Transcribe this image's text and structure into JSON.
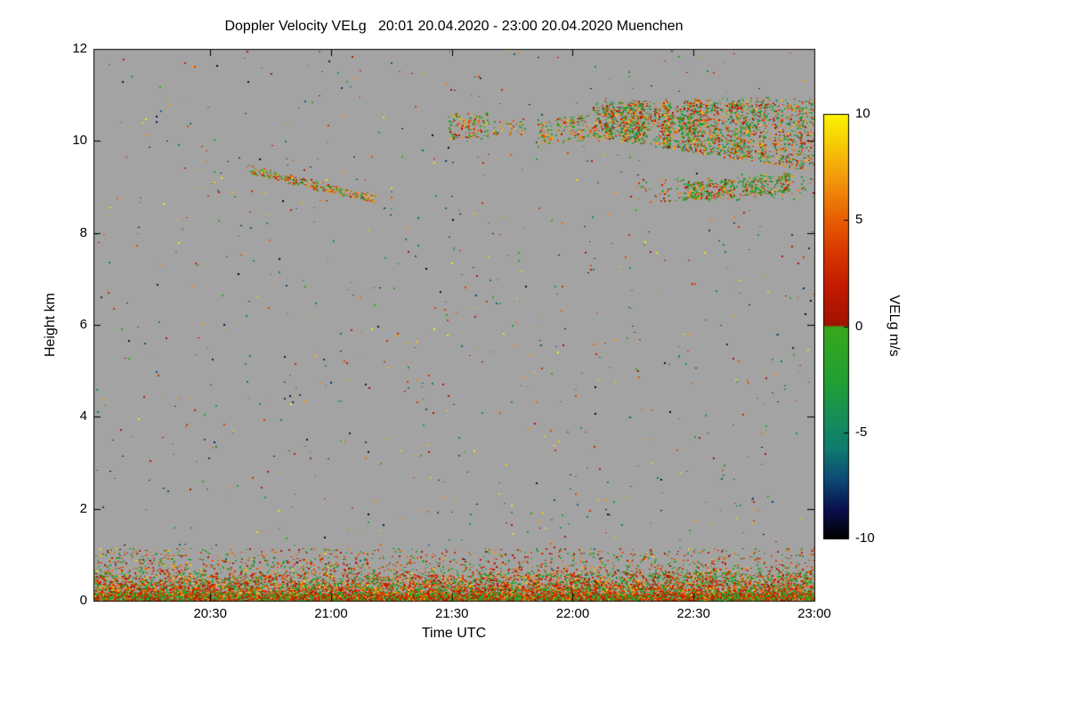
{
  "chart_data": {
    "type": "heatmap",
    "title": "Doppler Velocity VELg   20:01 20.04.2020 - 23:00 20.04.2020 Muenchen",
    "xlabel": "Time UTC",
    "ylabel": "Height km",
    "colorbar_label": "VELg m/s",
    "time_start": "20:01 20.04.2020",
    "time_end": "23:00 20.04.2020",
    "location": "Muenchen",
    "x_range_minutes": [
      1201,
      1380
    ],
    "x_ticks": [
      {
        "minutes": 1230,
        "label": "20:30"
      },
      {
        "minutes": 1260,
        "label": "21:00"
      },
      {
        "minutes": 1290,
        "label": "21:30"
      },
      {
        "minutes": 1320,
        "label": "22:00"
      },
      {
        "minutes": 1350,
        "label": "22:30"
      },
      {
        "minutes": 1380,
        "label": "23:00"
      }
    ],
    "y_range": [
      0,
      12
    ],
    "y_ticks": [
      {
        "value": 0,
        "label": "0"
      },
      {
        "value": 2,
        "label": "2"
      },
      {
        "value": 4,
        "label": "4"
      },
      {
        "value": 6,
        "label": "6"
      },
      {
        "value": 8,
        "label": "8"
      },
      {
        "value": 10,
        "label": "10"
      },
      {
        "value": 12,
        "label": "12"
      }
    ],
    "background_color": "#a3a3a3",
    "colorbar": {
      "range": [
        -10,
        10
      ],
      "ticks": [
        {
          "value": 10,
          "label": "10"
        },
        {
          "value": 5,
          "label": "5"
        },
        {
          "value": 0,
          "label": "0"
        },
        {
          "value": -5,
          "label": "-5"
        },
        {
          "value": -10,
          "label": "-10"
        }
      ],
      "stops": [
        {
          "v": -10,
          "c": "#000000"
        },
        {
          "v": -8.6,
          "c": "#0a1150"
        },
        {
          "v": -7.2,
          "c": "#0d4a74"
        },
        {
          "v": -5.8,
          "c": "#107a70"
        },
        {
          "v": -4.2,
          "c": "#169055"
        },
        {
          "v": -2.6,
          "c": "#22a033"
        },
        {
          "v": -0.05,
          "c": "#38a81c"
        },
        {
          "v": 0.05,
          "c": "#a01300"
        },
        {
          "v": 1.8,
          "c": "#c21a00"
        },
        {
          "v": 3.5,
          "c": "#d83800"
        },
        {
          "v": 5.2,
          "c": "#e96304"
        },
        {
          "v": 7.0,
          "c": "#f29a0e"
        },
        {
          "v": 8.6,
          "c": "#f6cc05"
        },
        {
          "v": 10,
          "c": "#fdf503"
        }
      ]
    },
    "seed": 1337,
    "noise": {
      "count": 950,
      "value_min": -10,
      "value_max": 10
    },
    "surface_band": {
      "count": 10500,
      "sigma_km": 0.3,
      "max_h_km": 1.15,
      "uniform_frac": 0.15,
      "mix": [
        {
          "f": 0.55,
          "v0": 0.2,
          "v1": 5.5
        },
        {
          "f": 0.33,
          "v0": -3.5,
          "v1": -0.3
        },
        {
          "f": 0.12,
          "v0": 5.5,
          "v1": 9.0
        }
      ]
    },
    "clouds": [
      {
        "name": "near-surface-dense-line",
        "t0": 1201,
        "t1": 1380,
        "h_bot0": 0.02,
        "h_bot1": 0.02,
        "h_top0": 0.16,
        "h_top1": 0.16,
        "density": 1.3,
        "streaky": false,
        "top_jitter": 0,
        "mix": [
          {
            "f": 0.5,
            "v0": 0.3,
            "v1": 4.5
          },
          {
            "f": 0.4,
            "v0": -3.2,
            "v1": -0.3
          },
          {
            "f": 0.1,
            "v0": 4.5,
            "v1": 8.0
          }
        ]
      },
      {
        "name": "elevated-thin-layer",
        "t0": 1318,
        "t1": 1380,
        "h_bot0": 0.5,
        "h_bot1": 0.5,
        "h_top0": 0.64,
        "h_top1": 0.64,
        "density": 0.4,
        "streaky": true,
        "top_jitter": 0,
        "mix": [
          {
            "f": 0.5,
            "v0": 0.3,
            "v1": 4.0
          },
          {
            "f": 0.5,
            "v0": -3.0,
            "v1": -0.3
          }
        ]
      },
      {
        "name": "descending-streak",
        "t0": 1239,
        "t1": 1271,
        "h_bot0": 9.3,
        "h_bot1": 8.66,
        "h_top0": 9.5,
        "h_top1": 8.84,
        "density": 0.55,
        "streaky": false,
        "top_jitter": 0.04,
        "mix": [
          {
            "f": 0.5,
            "v0": 3.5,
            "v1": 8.5
          },
          {
            "f": 0.35,
            "v0": -2.8,
            "v1": -0.2
          },
          {
            "f": 0.15,
            "v0": 0.3,
            "v1": 3.0
          }
        ]
      },
      {
        "name": "cloud-patch-2130",
        "t0": 1289,
        "t1": 1299,
        "h_bot0": 10.05,
        "h_bot1": 10.1,
        "h_top0": 10.6,
        "h_top1": 10.65,
        "density": 0.5,
        "streaky": true,
        "top_jitter": 0.08,
        "mix": [
          {
            "f": 0.5,
            "v0": 3.5,
            "v1": 8.5
          },
          {
            "f": 0.35,
            "v0": -2.8,
            "v1": -0.2
          },
          {
            "f": 0.15,
            "v0": 0.3,
            "v1": 3.0
          }
        ]
      },
      {
        "name": "cloud-bits-2140",
        "t0": 1300,
        "t1": 1308,
        "h_bot0": 10.15,
        "h_bot1": 10.15,
        "h_top0": 10.5,
        "h_top1": 10.5,
        "density": 0.3,
        "streaky": true,
        "top_jitter": 0.05,
        "mix": [
          {
            "f": 0.5,
            "v0": 3.5,
            "v1": 8.5
          },
          {
            "f": 0.35,
            "v0": -2.8,
            "v1": -0.2
          },
          {
            "f": 0.15,
            "v0": 0.3,
            "v1": 3.0
          }
        ]
      },
      {
        "name": "cloud-scatter-2155",
        "t0": 1311,
        "t1": 1329,
        "h_bot0": 9.95,
        "h_bot1": 10.0,
        "h_top0": 10.55,
        "h_top1": 10.65,
        "density": 0.32,
        "streaky": true,
        "top_jitter": 0.1,
        "mix": [
          {
            "f": 0.5,
            "v0": 3.5,
            "v1": 8.5
          },
          {
            "f": 0.35,
            "v0": -2.8,
            "v1": -0.2
          },
          {
            "f": 0.15,
            "v0": 0.3,
            "v1": 3.0
          }
        ]
      },
      {
        "name": "main-cloud-deck",
        "t0": 1325,
        "t1": 1380,
        "h_bot0": 10.1,
        "h_bot1": 9.35,
        "h_top0": 10.9,
        "h_top1": 11.0,
        "density": 0.75,
        "streaky": true,
        "top_jitter": 0.15,
        "mix": [
          {
            "f": 0.33,
            "v0": 3.5,
            "v1": 8.5
          },
          {
            "f": 0.3,
            "v0": -3.0,
            "v1": -0.3
          },
          {
            "f": 0.22,
            "v0": 0.3,
            "v1": 3.0
          },
          {
            "f": 0.15,
            "v0": -5.5,
            "v1": -2.5
          }
        ]
      },
      {
        "name": "lower-band-scatter",
        "t0": 1336,
        "t1": 1380,
        "h_bot0": 8.68,
        "h_bot1": 8.75,
        "h_top0": 9.2,
        "h_top1": 9.3,
        "density": 0.18,
        "streaky": true,
        "top_jitter": 0.06,
        "mix": [
          {
            "f": 0.55,
            "v0": -3.5,
            "v1": -0.4
          },
          {
            "f": 0.3,
            "v0": 3.0,
            "v1": 8.0
          },
          {
            "f": 0.15,
            "v0": 0.3,
            "v1": 2.5
          }
        ]
      },
      {
        "name": "lower-band-blob-1",
        "t0": 1347,
        "t1": 1360,
        "h_bot0": 8.72,
        "h_bot1": 8.78,
        "h_top0": 9.12,
        "h_top1": 9.18,
        "density": 0.5,
        "streaky": false,
        "top_jitter": 0.05,
        "mix": [
          {
            "f": 0.55,
            "v0": -3.5,
            "v1": -0.4
          },
          {
            "f": 0.3,
            "v0": 3.0,
            "v1": 8.0
          },
          {
            "f": 0.15,
            "v0": 0.3,
            "v1": 2.5
          }
        ]
      },
      {
        "name": "lower-band-blob-2",
        "t0": 1362,
        "t1": 1374,
        "h_bot0": 8.82,
        "h_bot1": 8.9,
        "h_top0": 9.25,
        "h_top1": 9.35,
        "density": 0.45,
        "streaky": false,
        "top_jitter": 0.05,
        "mix": [
          {
            "f": 0.55,
            "v0": -3.5,
            "v1": -0.4
          },
          {
            "f": 0.3,
            "v0": 3.0,
            "v1": 8.0
          },
          {
            "f": 0.15,
            "v0": 0.3,
            "v1": 2.5
          }
        ]
      }
    ]
  }
}
